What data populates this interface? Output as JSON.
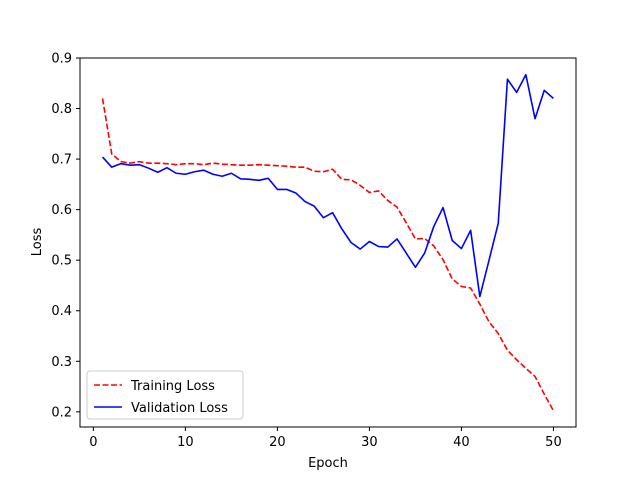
{
  "chart_data": {
    "type": "line",
    "xlabel": "Epoch",
    "ylabel": "Loss",
    "xlim": [
      -1.45,
      52.45
    ],
    "ylim": [
      0.17,
      0.9
    ],
    "x_ticks": [
      0,
      10,
      20,
      30,
      40,
      50
    ],
    "y_ticks": [
      0.2,
      0.3,
      0.4,
      0.5,
      0.6,
      0.7,
      0.8,
      0.9
    ],
    "legend_position": "lower-left",
    "x": [
      1,
      2,
      3,
      4,
      5,
      6,
      7,
      8,
      9,
      10,
      11,
      12,
      13,
      14,
      15,
      16,
      17,
      18,
      19,
      20,
      21,
      22,
      23,
      24,
      25,
      26,
      27,
      28,
      29,
      30,
      31,
      32,
      33,
      34,
      35,
      36,
      37,
      38,
      39,
      40,
      41,
      42,
      43,
      44,
      45,
      46,
      47,
      48,
      49,
      50
    ],
    "series": [
      {
        "name": "Training Loss",
        "color": "#ff0000",
        "style": "dashed",
        "values": [
          0.82,
          0.71,
          0.695,
          0.692,
          0.695,
          0.692,
          0.692,
          0.691,
          0.689,
          0.691,
          0.691,
          0.689,
          0.692,
          0.69,
          0.689,
          0.688,
          0.688,
          0.689,
          0.688,
          0.687,
          0.686,
          0.684,
          0.684,
          0.676,
          0.675,
          0.68,
          0.66,
          0.659,
          0.648,
          0.634,
          0.637,
          0.618,
          0.605,
          0.574,
          0.542,
          0.543,
          0.528,
          0.501,
          0.463,
          0.448,
          0.445,
          0.413,
          0.378,
          0.355,
          0.322,
          0.303,
          0.286,
          0.27,
          0.235,
          0.202
        ]
      },
      {
        "name": "Validation Loss",
        "color": "#0000ff",
        "style": "solid",
        "values": [
          0.704,
          0.684,
          0.691,
          0.688,
          0.689,
          0.682,
          0.674,
          0.683,
          0.672,
          0.67,
          0.675,
          0.678,
          0.67,
          0.666,
          0.672,
          0.661,
          0.66,
          0.658,
          0.662,
          0.64,
          0.64,
          0.633,
          0.616,
          0.607,
          0.584,
          0.594,
          0.562,
          0.535,
          0.522,
          0.537,
          0.527,
          0.526,
          0.542,
          0.514,
          0.486,
          0.514,
          0.567,
          0.604,
          0.539,
          0.523,
          0.559,
          0.428,
          0.5,
          0.573,
          0.858,
          0.832,
          0.867,
          0.78,
          0.836,
          0.82
        ]
      }
    ]
  }
}
